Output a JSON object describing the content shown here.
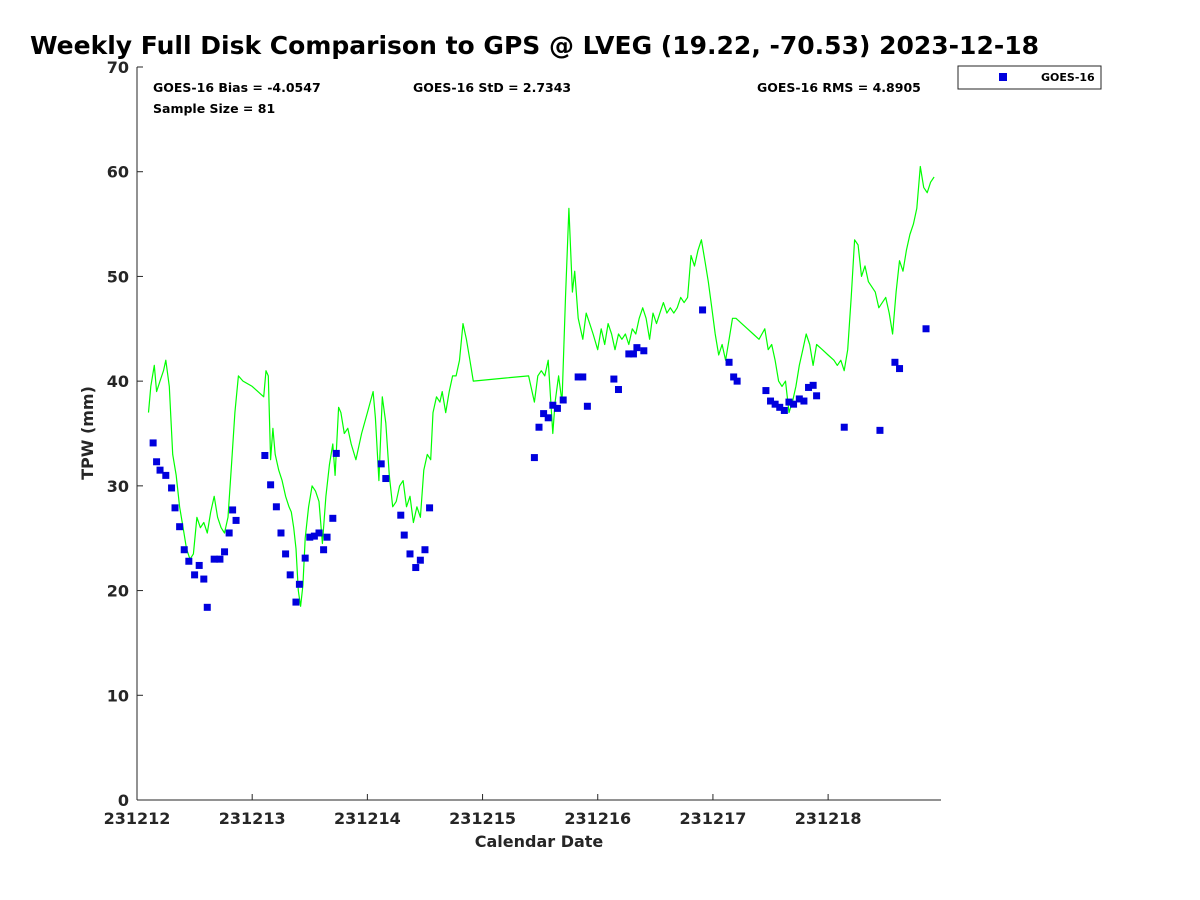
{
  "chart_data": {
    "type": "scatter+line",
    "title": "Weekly Full Disk Comparison to GPS @ LVEG (19.22, -70.53) 2023-12-18",
    "xlabel": "Calendar Date",
    "ylabel": "TPW (mm)",
    "xlim": [
      0,
      6.98
    ],
    "ylim": [
      0,
      70
    ],
    "xticks": [
      0,
      1,
      2,
      3,
      4,
      5,
      6
    ],
    "xtick_labels": [
      "231212",
      "231213",
      "231214",
      "231215",
      "231216",
      "231217",
      "231218"
    ],
    "yticks": [
      0,
      10,
      20,
      30,
      40,
      50,
      60,
      70
    ],
    "grid": false,
    "legend": {
      "position": "top-right-outside",
      "entries": [
        "GOES-16"
      ]
    },
    "stats": {
      "bias": "GOES-16 Bias = -4.0547",
      "std": "GOES-16 StD = 2.7343",
      "rms": "GOES-16 RMS = 4.8905",
      "sample": "Sample Size = 81"
    },
    "series": [
      {
        "name": "GPS",
        "kind": "line",
        "color": "#00ff00",
        "points": [
          [
            0.1,
            37.0
          ],
          [
            0.12,
            39.5
          ],
          [
            0.15,
            41.5
          ],
          [
            0.17,
            39.0
          ],
          [
            0.2,
            40.0
          ],
          [
            0.23,
            41.0
          ],
          [
            0.25,
            42.0
          ],
          [
            0.28,
            39.5
          ],
          [
            0.31,
            33.0
          ],
          [
            0.34,
            31.0
          ],
          [
            0.37,
            28.0
          ],
          [
            0.4,
            26.0
          ],
          [
            0.43,
            24.0
          ],
          [
            0.46,
            23.0
          ],
          [
            0.49,
            23.5
          ],
          [
            0.52,
            27.0
          ],
          [
            0.55,
            26.0
          ],
          [
            0.58,
            26.5
          ],
          [
            0.61,
            25.5
          ],
          [
            0.64,
            27.5
          ],
          [
            0.67,
            29.0
          ],
          [
            0.7,
            27.0
          ],
          [
            0.73,
            26.0
          ],
          [
            0.76,
            25.5
          ],
          [
            0.79,
            27.0
          ],
          [
            0.82,
            32.0
          ],
          [
            0.85,
            37.0
          ],
          [
            0.88,
            40.5
          ],
          [
            0.92,
            40.0
          ],
          [
            1.0,
            39.5
          ],
          [
            1.05,
            39.0
          ],
          [
            1.1,
            38.5
          ],
          [
            1.12,
            41.0
          ],
          [
            1.14,
            40.5
          ],
          [
            1.16,
            32.5
          ],
          [
            1.18,
            35.5
          ],
          [
            1.2,
            33.0
          ],
          [
            1.23,
            31.5
          ],
          [
            1.26,
            30.5
          ],
          [
            1.29,
            29.0
          ],
          [
            1.32,
            28.0
          ],
          [
            1.34,
            27.5
          ],
          [
            1.36,
            26.0
          ],
          [
            1.38,
            24.0
          ],
          [
            1.4,
            20.0
          ],
          [
            1.42,
            18.5
          ],
          [
            1.44,
            20.5
          ],
          [
            1.46,
            25.0
          ],
          [
            1.49,
            28.0
          ],
          [
            1.52,
            30.0
          ],
          [
            1.55,
            29.5
          ],
          [
            1.58,
            28.5
          ],
          [
            1.61,
            24.5
          ],
          [
            1.64,
            29.0
          ],
          [
            1.67,
            32.0
          ],
          [
            1.7,
            34.0
          ],
          [
            1.72,
            31.0
          ],
          [
            1.75,
            37.5
          ],
          [
            1.77,
            37.0
          ],
          [
            1.8,
            35.0
          ],
          [
            1.83,
            35.5
          ],
          [
            1.86,
            34.0
          ],
          [
            1.9,
            32.5
          ],
          [
            1.95,
            35.0
          ],
          [
            2.0,
            37.0
          ],
          [
            2.05,
            39.0
          ],
          [
            2.07,
            36.5
          ],
          [
            2.1,
            30.5
          ],
          [
            2.13,
            38.5
          ],
          [
            2.16,
            36.0
          ],
          [
            2.19,
            31.0
          ],
          [
            2.22,
            28.0
          ],
          [
            2.25,
            28.5
          ],
          [
            2.28,
            30.0
          ],
          [
            2.31,
            30.5
          ],
          [
            2.34,
            28.0
          ],
          [
            2.37,
            29.0
          ],
          [
            2.4,
            26.5
          ],
          [
            2.43,
            28.0
          ],
          [
            2.46,
            27.0
          ],
          [
            2.49,
            31.5
          ],
          [
            2.52,
            33.0
          ],
          [
            2.55,
            32.5
          ],
          [
            2.57,
            37.0
          ],
          [
            2.6,
            38.5
          ],
          [
            2.63,
            38.0
          ],
          [
            2.65,
            39.0
          ],
          [
            2.68,
            37.0
          ],
          [
            2.71,
            39.0
          ],
          [
            2.74,
            40.5
          ],
          [
            2.77,
            40.5
          ],
          [
            2.8,
            42.0
          ],
          [
            2.83,
            45.5
          ],
          [
            2.86,
            44.0
          ],
          [
            2.89,
            42.0
          ],
          [
            2.92,
            40.0
          ],
          [
            3.2,
            40.3
          ],
          [
            3.4,
            40.5
          ],
          [
            3.45,
            38.0
          ],
          [
            3.48,
            40.5
          ],
          [
            3.51,
            41.0
          ],
          [
            3.54,
            40.5
          ],
          [
            3.57,
            42.0
          ],
          [
            3.59,
            38.5
          ],
          [
            3.61,
            35.0
          ],
          [
            3.63,
            38.0
          ],
          [
            3.66,
            40.5
          ],
          [
            3.69,
            38.0
          ],
          [
            3.72,
            48.0
          ],
          [
            3.75,
            56.5
          ],
          [
            3.78,
            48.5
          ],
          [
            3.8,
            50.5
          ],
          [
            3.83,
            46.0
          ],
          [
            3.87,
            44.0
          ],
          [
            3.9,
            46.5
          ],
          [
            3.93,
            45.5
          ],
          [
            3.96,
            44.5
          ],
          [
            4.0,
            43.0
          ],
          [
            4.03,
            45.0
          ],
          [
            4.06,
            43.5
          ],
          [
            4.09,
            45.5
          ],
          [
            4.12,
            44.5
          ],
          [
            4.15,
            43.0
          ],
          [
            4.18,
            44.5
          ],
          [
            4.21,
            44.0
          ],
          [
            4.24,
            44.5
          ],
          [
            4.27,
            43.5
          ],
          [
            4.3,
            45.0
          ],
          [
            4.33,
            44.5
          ],
          [
            4.36,
            46.0
          ],
          [
            4.39,
            47.0
          ],
          [
            4.42,
            46.0
          ],
          [
            4.45,
            44.0
          ],
          [
            4.48,
            46.5
          ],
          [
            4.51,
            45.5
          ],
          [
            4.54,
            46.5
          ],
          [
            4.57,
            47.5
          ],
          [
            4.6,
            46.5
          ],
          [
            4.63,
            47.0
          ],
          [
            4.66,
            46.5
          ],
          [
            4.69,
            47.0
          ],
          [
            4.72,
            48.0
          ],
          [
            4.75,
            47.5
          ],
          [
            4.78,
            48.0
          ],
          [
            4.81,
            52.0
          ],
          [
            4.84,
            51.0
          ],
          [
            4.87,
            52.5
          ],
          [
            4.9,
            53.5
          ],
          [
            4.93,
            51.5
          ],
          [
            4.96,
            49.5
          ],
          [
            4.99,
            47.0
          ],
          [
            5.02,
            44.5
          ],
          [
            5.05,
            42.5
          ],
          [
            5.08,
            43.5
          ],
          [
            5.11,
            42.0
          ],
          [
            5.14,
            44.0
          ],
          [
            5.17,
            46.0
          ],
          [
            5.2,
            46.0
          ],
          [
            5.25,
            45.5
          ],
          [
            5.3,
            45.0
          ],
          [
            5.35,
            44.5
          ],
          [
            5.4,
            44.0
          ],
          [
            5.45,
            45.0
          ],
          [
            5.48,
            43.0
          ],
          [
            5.51,
            43.5
          ],
          [
            5.54,
            42.0
          ],
          [
            5.57,
            40.0
          ],
          [
            5.6,
            39.5
          ],
          [
            5.63,
            40.0
          ],
          [
            5.66,
            37.0
          ],
          [
            5.69,
            38.0
          ],
          [
            5.72,
            39.5
          ],
          [
            5.75,
            41.5
          ],
          [
            5.78,
            43.0
          ],
          [
            5.81,
            44.5
          ],
          [
            5.84,
            43.5
          ],
          [
            5.87,
            41.5
          ],
          [
            5.9,
            43.5
          ],
          [
            5.95,
            43.0
          ],
          [
            6.0,
            42.5
          ],
          [
            6.05,
            42.0
          ],
          [
            6.08,
            41.5
          ],
          [
            6.11,
            42.0
          ],
          [
            6.14,
            41.0
          ],
          [
            6.17,
            43.0
          ],
          [
            6.2,
            48.0
          ],
          [
            6.23,
            53.5
          ],
          [
            6.26,
            53.0
          ],
          [
            6.29,
            50.0
          ],
          [
            6.32,
            51.0
          ],
          [
            6.35,
            49.5
          ],
          [
            6.38,
            49.0
          ],
          [
            6.41,
            48.5
          ],
          [
            6.44,
            47.0
          ],
          [
            6.47,
            47.5
          ],
          [
            6.5,
            48.0
          ],
          [
            6.53,
            46.5
          ],
          [
            6.56,
            44.5
          ],
          [
            6.59,
            48.5
          ],
          [
            6.62,
            51.5
          ],
          [
            6.65,
            50.5
          ],
          [
            6.68,
            52.5
          ],
          [
            6.71,
            54.0
          ],
          [
            6.74,
            55.0
          ],
          [
            6.77,
            56.5
          ],
          [
            6.8,
            60.5
          ],
          [
            6.83,
            58.5
          ],
          [
            6.86,
            58.0
          ],
          [
            6.89,
            59.0
          ],
          [
            6.92,
            59.5
          ]
        ]
      },
      {
        "name": "GOES-16",
        "kind": "scatter",
        "marker": "square",
        "color": "#0000dd",
        "points": [
          [
            0.14,
            34.1
          ],
          [
            0.17,
            32.3
          ],
          [
            0.2,
            31.5
          ],
          [
            0.25,
            31.0
          ],
          [
            0.3,
            29.8
          ],
          [
            0.33,
            27.9
          ],
          [
            0.37,
            26.1
          ],
          [
            0.41,
            23.9
          ],
          [
            0.45,
            22.8
          ],
          [
            0.5,
            21.5
          ],
          [
            0.54,
            22.4
          ],
          [
            0.58,
            21.1
          ],
          [
            0.61,
            18.4
          ],
          [
            0.67,
            23.0
          ],
          [
            0.72,
            23.0
          ],
          [
            0.76,
            23.7
          ],
          [
            0.8,
            25.5
          ],
          [
            0.83,
            27.7
          ],
          [
            0.86,
            26.7
          ],
          [
            1.11,
            32.9
          ],
          [
            1.16,
            30.1
          ],
          [
            1.21,
            28.0
          ],
          [
            1.25,
            25.5
          ],
          [
            1.29,
            23.5
          ],
          [
            1.33,
            21.5
          ],
          [
            1.38,
            18.9
          ],
          [
            1.41,
            20.6
          ],
          [
            1.46,
            23.1
          ],
          [
            1.5,
            25.1
          ],
          [
            1.54,
            25.2
          ],
          [
            1.58,
            25.5
          ],
          [
            1.62,
            23.9
          ],
          [
            1.65,
            25.1
          ],
          [
            1.7,
            26.9
          ],
          [
            1.73,
            33.1
          ],
          [
            2.12,
            32.1
          ],
          [
            2.16,
            30.7
          ],
          [
            2.29,
            27.2
          ],
          [
            2.32,
            25.3
          ],
          [
            2.37,
            23.5
          ],
          [
            2.42,
            22.2
          ],
          [
            2.46,
            22.9
          ],
          [
            2.5,
            23.9
          ],
          [
            2.54,
            27.9
          ],
          [
            3.45,
            32.7
          ],
          [
            3.49,
            35.6
          ],
          [
            3.53,
            36.9
          ],
          [
            3.57,
            36.5
          ],
          [
            3.61,
            37.7
          ],
          [
            3.65,
            37.4
          ],
          [
            3.7,
            38.2
          ],
          [
            3.83,
            40.4
          ],
          [
            3.87,
            40.4
          ],
          [
            3.91,
            37.6
          ],
          [
            4.14,
            40.2
          ],
          [
            4.18,
            39.2
          ],
          [
            4.27,
            42.6
          ],
          [
            4.31,
            42.6
          ],
          [
            4.34,
            43.2
          ],
          [
            4.4,
            42.9
          ],
          [
            4.91,
            46.8
          ],
          [
            5.14,
            41.8
          ],
          [
            5.18,
            40.4
          ],
          [
            5.21,
            40.0
          ],
          [
            5.46,
            39.1
          ],
          [
            5.5,
            38.1
          ],
          [
            5.54,
            37.8
          ],
          [
            5.58,
            37.5
          ],
          [
            5.62,
            37.2
          ],
          [
            5.66,
            38.0
          ],
          [
            5.7,
            37.8
          ],
          [
            5.75,
            38.3
          ],
          [
            5.79,
            38.1
          ],
          [
            5.83,
            39.4
          ],
          [
            5.87,
            39.6
          ],
          [
            5.9,
            38.6
          ],
          [
            6.14,
            35.6
          ],
          [
            6.45,
            35.3
          ],
          [
            6.58,
            41.8
          ],
          [
            6.62,
            41.2
          ],
          [
            6.85,
            45.0
          ]
        ]
      }
    ]
  }
}
